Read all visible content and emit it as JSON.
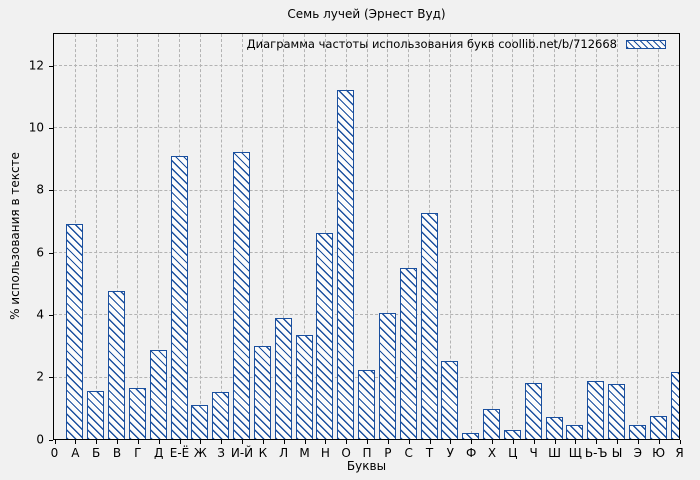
{
  "chart_data": {
    "type": "bar",
    "title": "Семь лучей (Эрнест Вуд)",
    "legend": "Диаграмма частоты использования букв coollib.net/b/712668",
    "legend_position": "top-right-inside",
    "xlabel": "Буквы",
    "ylabel": "% использования в тексте",
    "origin_label": "0",
    "categories": [
      "А",
      "Б",
      "В",
      "Г",
      "Д",
      "Е-Ё",
      "Ж",
      "З",
      "И-Й",
      "К",
      "Л",
      "М",
      "Н",
      "О",
      "П",
      "Р",
      "С",
      "Т",
      "У",
      "Ф",
      "Х",
      "Ц",
      "Ч",
      "Ш",
      "Щ",
      "Ь-Ъ",
      "Ы",
      "Э",
      "Ю",
      "Я"
    ],
    "values": [
      6.9,
      1.55,
      4.75,
      1.65,
      2.85,
      9.1,
      1.1,
      1.5,
      9.2,
      3.0,
      3.9,
      3.35,
      6.6,
      11.2,
      2.2,
      4.05,
      5.5,
      7.25,
      2.5,
      0.2,
      0.95,
      0.3,
      1.8,
      0.7,
      0.45,
      1.85,
      1.75,
      0.45,
      0.75,
      2.15
    ],
    "yticks": [
      0,
      2,
      4,
      6,
      8,
      10,
      12
    ],
    "ylim": [
      0,
      13
    ],
    "grid": true,
    "bar_color": "#1a4f9e",
    "hatch": "diagonal-backslash"
  }
}
